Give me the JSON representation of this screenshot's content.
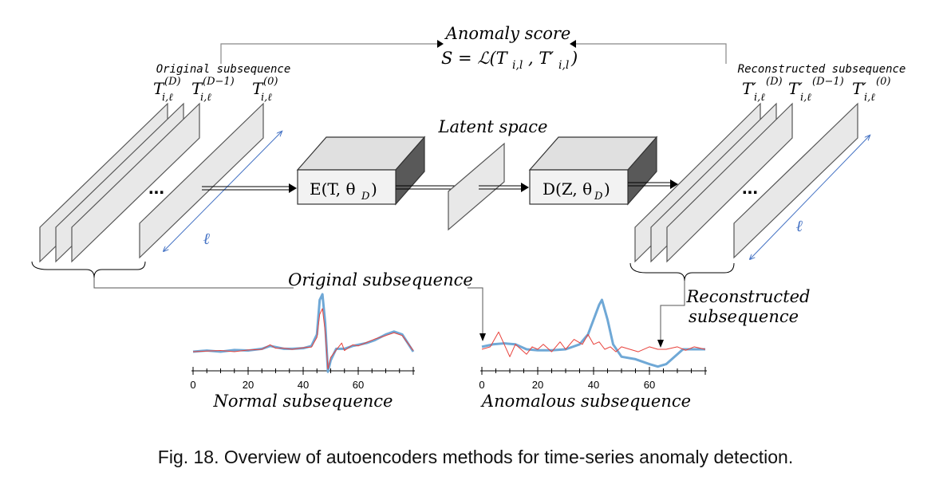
{
  "labels": {
    "anomaly_score_title": "Anomaly score",
    "anomaly_score_formula": "S = ℒ(T",
    "original_top": "Original subsequence",
    "reconstructed_top": "Reconstructed subsequence",
    "latent_space": "Latent space",
    "encoder": "E(T, θ",
    "decoder": "D(Z, θ",
    "ellipsis_left": "...",
    "ellipsis_right": "...",
    "ell_left": "ℓ",
    "ell_right": "ℓ",
    "original_mid": "Original subsequence",
    "reconstructed_mid_1": "Reconstructed",
    "reconstructed_mid_2": "subsequence",
    "normal_caption": "Normal subsequence",
    "anomalous_caption": "Anomalous subsequence"
  },
  "orig_labels": [
    {
      "base": "T",
      "sub": "i,ℓ",
      "sup": "(D)"
    },
    {
      "base": "T",
      "sub": "i,ℓ",
      "sup": "(D−1)"
    },
    {
      "base": "T",
      "sub": "i,ℓ",
      "sup": "(0)"
    }
  ],
  "recon_labels": [
    {
      "base": "T′",
      "sub": "i,ℓ",
      "sup": "(D)"
    },
    {
      "base": "T′",
      "sub": "i,ℓ",
      "sup": "(D−1)"
    },
    {
      "base": "T′",
      "sub": "i,ℓ",
      "sup": "(0)"
    }
  ],
  "colors": {
    "blue_line": "#6fa8d6",
    "red_line": "#e8413b",
    "panel_fill": "#e8e8e8",
    "box_front": "#f2f2f2",
    "box_top": "#e0e0e0",
    "box_side": "#595959",
    "ell_color": "#4472c4"
  },
  "chart_data": [
    {
      "type": "line",
      "caption": "Normal subsequence",
      "xticks": [
        0,
        20,
        40,
        60
      ],
      "xlim": [
        0,
        80
      ],
      "series": [
        {
          "color": "#6fa8d6",
          "x": [
            0,
            5,
            10,
            15,
            20,
            25,
            28,
            30,
            33,
            36,
            40,
            43,
            45,
            46,
            47,
            48,
            49,
            50,
            52,
            55,
            58,
            60,
            63,
            66,
            70,
            73,
            76,
            80
          ],
          "y": [
            0,
            0.02,
            0,
            0.03,
            0.02,
            0.05,
            0.1,
            0.08,
            0.05,
            0.05,
            0.06,
            0.1,
            0.3,
            0.9,
            1.0,
            0.5,
            -0.35,
            -0.15,
            0.05,
            0.05,
            0.1,
            0.12,
            0.15,
            0.2,
            0.3,
            0.35,
            0.3,
            0.0
          ]
        },
        {
          "color": "#e8413b",
          "x": [
            0,
            5,
            10,
            15,
            20,
            25,
            28,
            30,
            33,
            36,
            40,
            43,
            45,
            46,
            47,
            48,
            49,
            50,
            52,
            54,
            55,
            58,
            60,
            63,
            66,
            70,
            73,
            76,
            80
          ],
          "y": [
            0,
            0.01,
            0.02,
            0.0,
            0.03,
            0.04,
            0.12,
            0.06,
            0.06,
            0.04,
            0.07,
            0.08,
            0.25,
            0.65,
            0.75,
            0.35,
            -0.3,
            -0.1,
            0.03,
            0.15,
            0.02,
            0.12,
            0.1,
            0.16,
            0.22,
            0.28,
            0.33,
            0.28,
            0.02
          ]
        }
      ]
    },
    {
      "type": "line",
      "caption": "Anomalous subsequence",
      "xticks": [
        0,
        20,
        40,
        60
      ],
      "xlim": [
        0,
        80
      ],
      "series": [
        {
          "color": "#6fa8d6",
          "x": [
            0,
            4,
            8,
            12,
            16,
            20,
            25,
            30,
            35,
            38,
            40,
            42,
            43,
            45,
            47,
            50,
            55,
            60,
            63,
            66,
            70,
            72,
            75,
            80
          ],
          "y": [
            0.05,
            0.1,
            0.12,
            0.1,
            0.0,
            -0.02,
            -0.02,
            0.0,
            0.1,
            0.3,
            0.6,
            0.9,
            1.0,
            0.6,
            0.1,
            -0.15,
            -0.2,
            -0.3,
            -0.35,
            -0.3,
            -0.1,
            0.0,
            0.0,
            0.0
          ]
        },
        {
          "color": "#e8413b",
          "x": [
            0,
            3,
            6,
            8,
            10,
            12,
            14,
            16,
            18,
            20,
            22,
            25,
            28,
            30,
            33,
            36,
            38,
            40,
            42,
            44,
            46,
            48,
            50,
            53,
            56,
            60,
            63,
            66,
            70,
            73,
            76,
            80
          ],
          "y": [
            0.0,
            0.05,
            0.35,
            0.1,
            -0.15,
            0.1,
            0.0,
            -0.1,
            0.05,
            0.0,
            0.1,
            -0.05,
            0.15,
            0.0,
            0.2,
            0.1,
            0.3,
            0.1,
            0.15,
            0.0,
            0.05,
            -0.05,
            0.05,
            0.0,
            -0.05,
            0.05,
            0.0,
            0.0,
            0.05,
            -0.02,
            0.05,
            0.0
          ]
        }
      ]
    }
  ]
}
